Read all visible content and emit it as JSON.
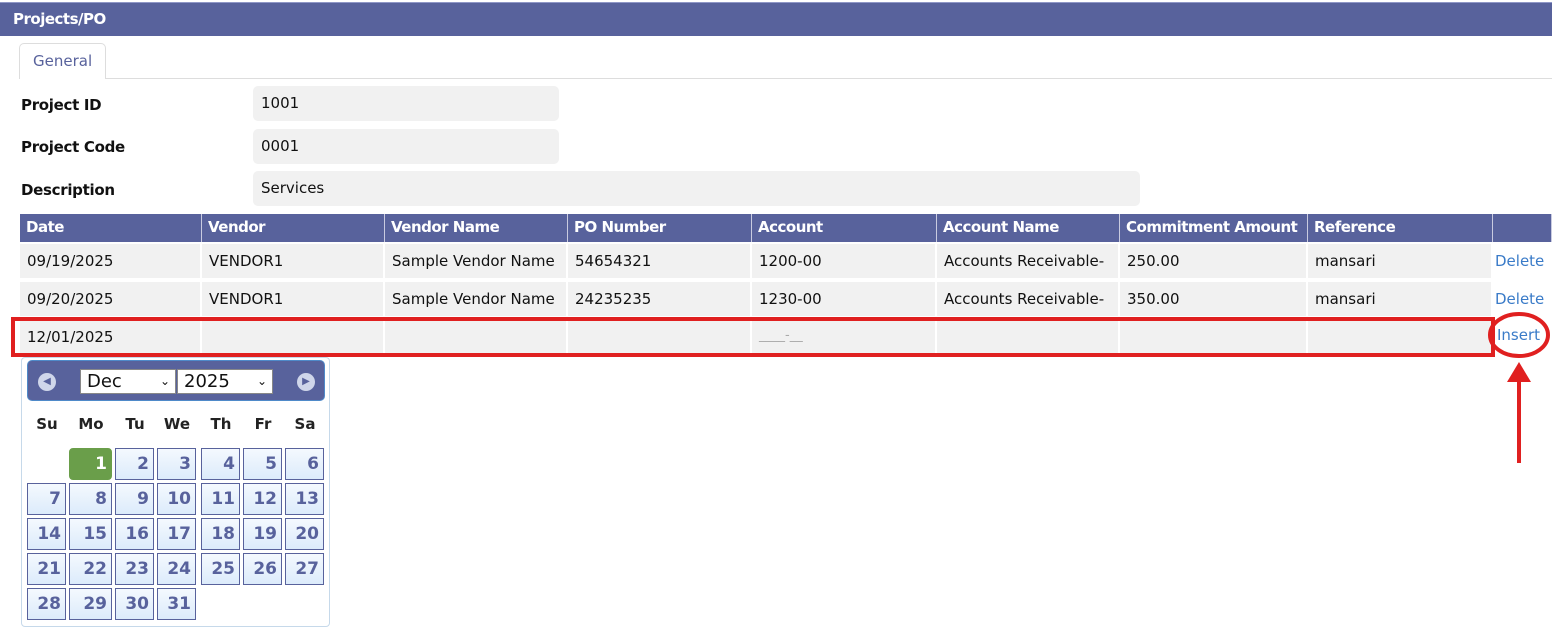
{
  "window": {
    "title": "Projects/PO"
  },
  "tabs": [
    {
      "label": "General",
      "active": true
    }
  ],
  "form": {
    "project_id": {
      "label": "Project ID",
      "value": "1001"
    },
    "project_code": {
      "label": "Project Code",
      "value": "0001"
    },
    "description": {
      "label": "Description",
      "value": "Services"
    }
  },
  "grid": {
    "columns": [
      "Date",
      "Vendor",
      "Vendor Name",
      "PO Number",
      "Account",
      "Account Name",
      "Commitment Amount",
      "Reference",
      ""
    ],
    "rows": [
      {
        "cells": [
          "09/19/2025",
          "VENDOR1",
          "Sample Vendor Name",
          "54654321",
          "1200-00",
          "Accounts Receivable-",
          "250.00",
          "mansari"
        ],
        "action": "Delete"
      },
      {
        "cells": [
          "09/20/2025",
          "VENDOR1",
          "Sample Vendor Name",
          "24235235",
          "1230-00",
          "Accounts Receivable-",
          "350.00",
          "mansari"
        ],
        "action": "Delete"
      }
    ],
    "new_row": {
      "cells": [
        "12/01/2025",
        "",
        "",
        "",
        "____-__",
        "",
        "",
        ""
      ],
      "action": "Insert"
    }
  },
  "calendar": {
    "month": "Dec",
    "year": "2025",
    "weekdays": [
      "Su",
      "Mo",
      "Tu",
      "We",
      "Th",
      "Fr",
      "Sa"
    ],
    "weeks": [
      [
        null,
        1,
        2,
        3,
        4,
        5,
        6
      ],
      [
        7,
        8,
        9,
        10,
        11,
        12,
        13
      ],
      [
        14,
        15,
        16,
        17,
        18,
        19,
        20
      ],
      [
        21,
        22,
        23,
        24,
        25,
        26,
        27
      ],
      [
        28,
        29,
        30,
        31,
        null,
        null,
        null
      ]
    ],
    "selected_day": 1,
    "prev_icon": "circle-arrow-left-icon",
    "next_icon": "circle-arrow-right-icon"
  },
  "colors": {
    "header": "#58629c",
    "selected_day": "#6a9e4a",
    "link": "#3a7bc8",
    "annotation": "#e02020"
  }
}
